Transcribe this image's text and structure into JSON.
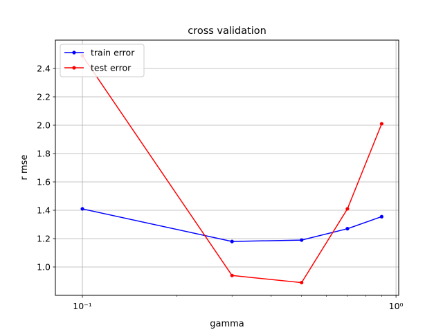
{
  "chart_data": {
    "type": "line",
    "title": "cross validation",
    "xlabel": "gamma",
    "ylabel": "r mse",
    "xscale": "log",
    "xlim": [
      0.082,
      1.02
    ],
    "ylim": [
      0.8,
      2.6
    ],
    "x_major_ticks": [
      {
        "value": 0.1,
        "label": "10⁻¹"
      },
      {
        "value": 1,
        "label": "10⁰"
      }
    ],
    "x_minor_ticks": [
      0.2,
      0.3,
      0.4,
      0.5,
      0.6,
      0.7,
      0.8,
      0.9
    ],
    "y_ticks": [
      1.0,
      1.2,
      1.4,
      1.6,
      1.8,
      2.0,
      2.2,
      2.4
    ],
    "y_tick_labels": [
      "1.0",
      "1.2",
      "1.4",
      "1.6",
      "1.8",
      "2.0",
      "2.2",
      "2.4"
    ],
    "grid": true,
    "legend_position": "top-left",
    "series": [
      {
        "name": "train error",
        "color": "#0000ff",
        "x": [
          0.1,
          0.3,
          0.5,
          0.7,
          0.9
        ],
        "y": [
          1.41,
          1.18,
          1.19,
          1.27,
          1.355
        ]
      },
      {
        "name": "test error",
        "color": "#ff0000",
        "x": [
          0.1,
          0.3,
          0.5,
          0.7,
          0.9
        ],
        "y": [
          2.49,
          0.94,
          0.89,
          1.41,
          2.01
        ]
      }
    ]
  }
}
